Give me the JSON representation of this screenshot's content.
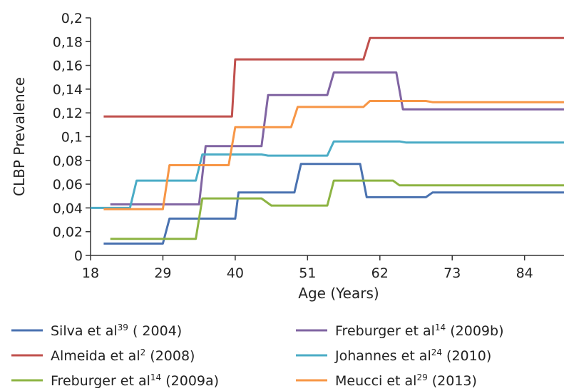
{
  "chart_data": {
    "type": "line",
    "step": true,
    "xlabel": "Age (Years)",
    "ylabel": "CLBP Prevalence",
    "xlim": [
      18,
      90
    ],
    "ylim": [
      0,
      0.2
    ],
    "x_ticks": [
      18,
      29,
      40,
      51,
      62,
      73,
      84
    ],
    "x_tick_labels": [
      "18",
      "29",
      "40",
      "51",
      "62",
      "73",
      "84"
    ],
    "y_ticks": [
      0,
      0.02,
      0.04,
      0.06,
      0.08,
      0.1,
      0.12,
      0.14,
      0.16,
      0.18,
      0.2
    ],
    "y_tick_labels": [
      "0",
      "0,02",
      "0,04",
      "0,06",
      "0,08",
      "0,1",
      "0,12",
      "0,14",
      "0,16",
      "0,18",
      "0,2"
    ],
    "grid": false,
    "legend_position": "bottom",
    "series": [
      {
        "name": "Silva et al39 ( 2004)",
        "legend": {
          "pre": "Silva et al",
          "sup": "39",
          "post": " ( 2004)"
        },
        "color": "#4a72b0",
        "points": [
          [
            20,
            0.01
          ],
          [
            29,
            0.01
          ],
          [
            30,
            0.031
          ],
          [
            35,
            0.031
          ],
          [
            40,
            0.031
          ],
          [
            40.5,
            0.053
          ],
          [
            47,
            0.053
          ],
          [
            49,
            0.053
          ],
          [
            50,
            0.077
          ],
          [
            55,
            0.077
          ],
          [
            59,
            0.077
          ],
          [
            60,
            0.049
          ],
          [
            62,
            0.049
          ],
          [
            66,
            0.049
          ],
          [
            69,
            0.049
          ],
          [
            70,
            0.053
          ],
          [
            90,
            0.053
          ]
        ]
      },
      {
        "name": "Almeida et al2 (2008)",
        "legend": {
          "pre": "Almeida et al",
          "sup": "2",
          "post": " (2008)"
        },
        "color": "#c0504d",
        "points": [
          [
            20,
            0.117
          ],
          [
            39.5,
            0.117
          ],
          [
            40,
            0.165
          ],
          [
            59.5,
            0.165
          ],
          [
            60.5,
            0.183
          ],
          [
            90,
            0.183
          ]
        ]
      },
      {
        "name": "Freburger et al14 (2009a)",
        "legend": {
          "pre": "Freburger et al",
          "sup": "14",
          "post": " (2009a)"
        },
        "color": "#8db443",
        "points": [
          [
            21,
            0.014
          ],
          [
            34,
            0.014
          ],
          [
            35,
            0.048
          ],
          [
            44,
            0.048
          ],
          [
            45.5,
            0.042
          ],
          [
            54,
            0.042
          ],
          [
            55,
            0.063
          ],
          [
            64,
            0.063
          ],
          [
            65,
            0.059
          ],
          [
            90,
            0.059
          ]
        ]
      },
      {
        "name": "Freburger et al14 (2009b)",
        "legend": {
          "pre": "Freburger et al",
          "sup": "14",
          "post": " (2009b)"
        },
        "color": "#8064a2",
        "points": [
          [
            21,
            0.043
          ],
          [
            34.5,
            0.043
          ],
          [
            35.5,
            0.092
          ],
          [
            44,
            0.092
          ],
          [
            45,
            0.135
          ],
          [
            54,
            0.135
          ],
          [
            55,
            0.154
          ],
          [
            64.5,
            0.154
          ],
          [
            65.5,
            0.123
          ],
          [
            90,
            0.123
          ]
        ]
      },
      {
        "name": "Johannes et al24 (2010)",
        "legend": {
          "pre": "Johannes et al",
          "sup": "24",
          "post": " (2010)"
        },
        "color": "#4bacc6",
        "points": [
          [
            18,
            0.04
          ],
          [
            24,
            0.04
          ],
          [
            25,
            0.063
          ],
          [
            34,
            0.063
          ],
          [
            35,
            0.085
          ],
          [
            44,
            0.085
          ],
          [
            45,
            0.084
          ],
          [
            54,
            0.084
          ],
          [
            55,
            0.096
          ],
          [
            65,
            0.096
          ],
          [
            66,
            0.095
          ],
          [
            90,
            0.095
          ]
        ]
      },
      {
        "name": "Meucci et al29 (2013)",
        "legend": {
          "pre": "Meucci et al",
          "sup": "29",
          "post": " (2013)"
        },
        "color": "#f79646",
        "points": [
          [
            20,
            0.039
          ],
          [
            29,
            0.039
          ],
          [
            30,
            0.076
          ],
          [
            39,
            0.076
          ],
          [
            40,
            0.108
          ],
          [
            48.5,
            0.108
          ],
          [
            49.5,
            0.125
          ],
          [
            59.5,
            0.125
          ],
          [
            60.5,
            0.13
          ],
          [
            69,
            0.13
          ],
          [
            70,
            0.129
          ],
          [
            90,
            0.129
          ]
        ]
      }
    ]
  }
}
